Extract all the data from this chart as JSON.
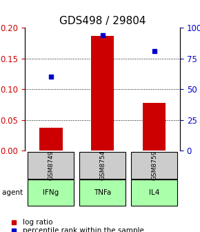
{
  "title": "GDS498 / 29804",
  "samples": [
    "GSM8749",
    "GSM8754",
    "GSM8759"
  ],
  "agents": [
    "IFNg",
    "TNFa",
    "IL4"
  ],
  "log_ratios": [
    0.037,
    0.187,
    0.078
  ],
  "percentile_ranks": [
    60,
    94,
    81
  ],
  "ylim_left": [
    0,
    0.2
  ],
  "ylim_right": [
    0,
    100
  ],
  "yticks_left": [
    0,
    0.05,
    0.1,
    0.15,
    0.2
  ],
  "yticks_right": [
    0,
    25,
    50,
    75,
    100
  ],
  "bar_color": "#cc0000",
  "point_color": "#0000cc",
  "agent_colors": [
    "#aaffaa",
    "#aaffaa",
    "#aaffaa"
  ],
  "sample_box_color": "#cccccc",
  "grid_color": "#000000",
  "title_fontsize": 11,
  "tick_fontsize": 8.5,
  "legend_fontsize": 7.5
}
